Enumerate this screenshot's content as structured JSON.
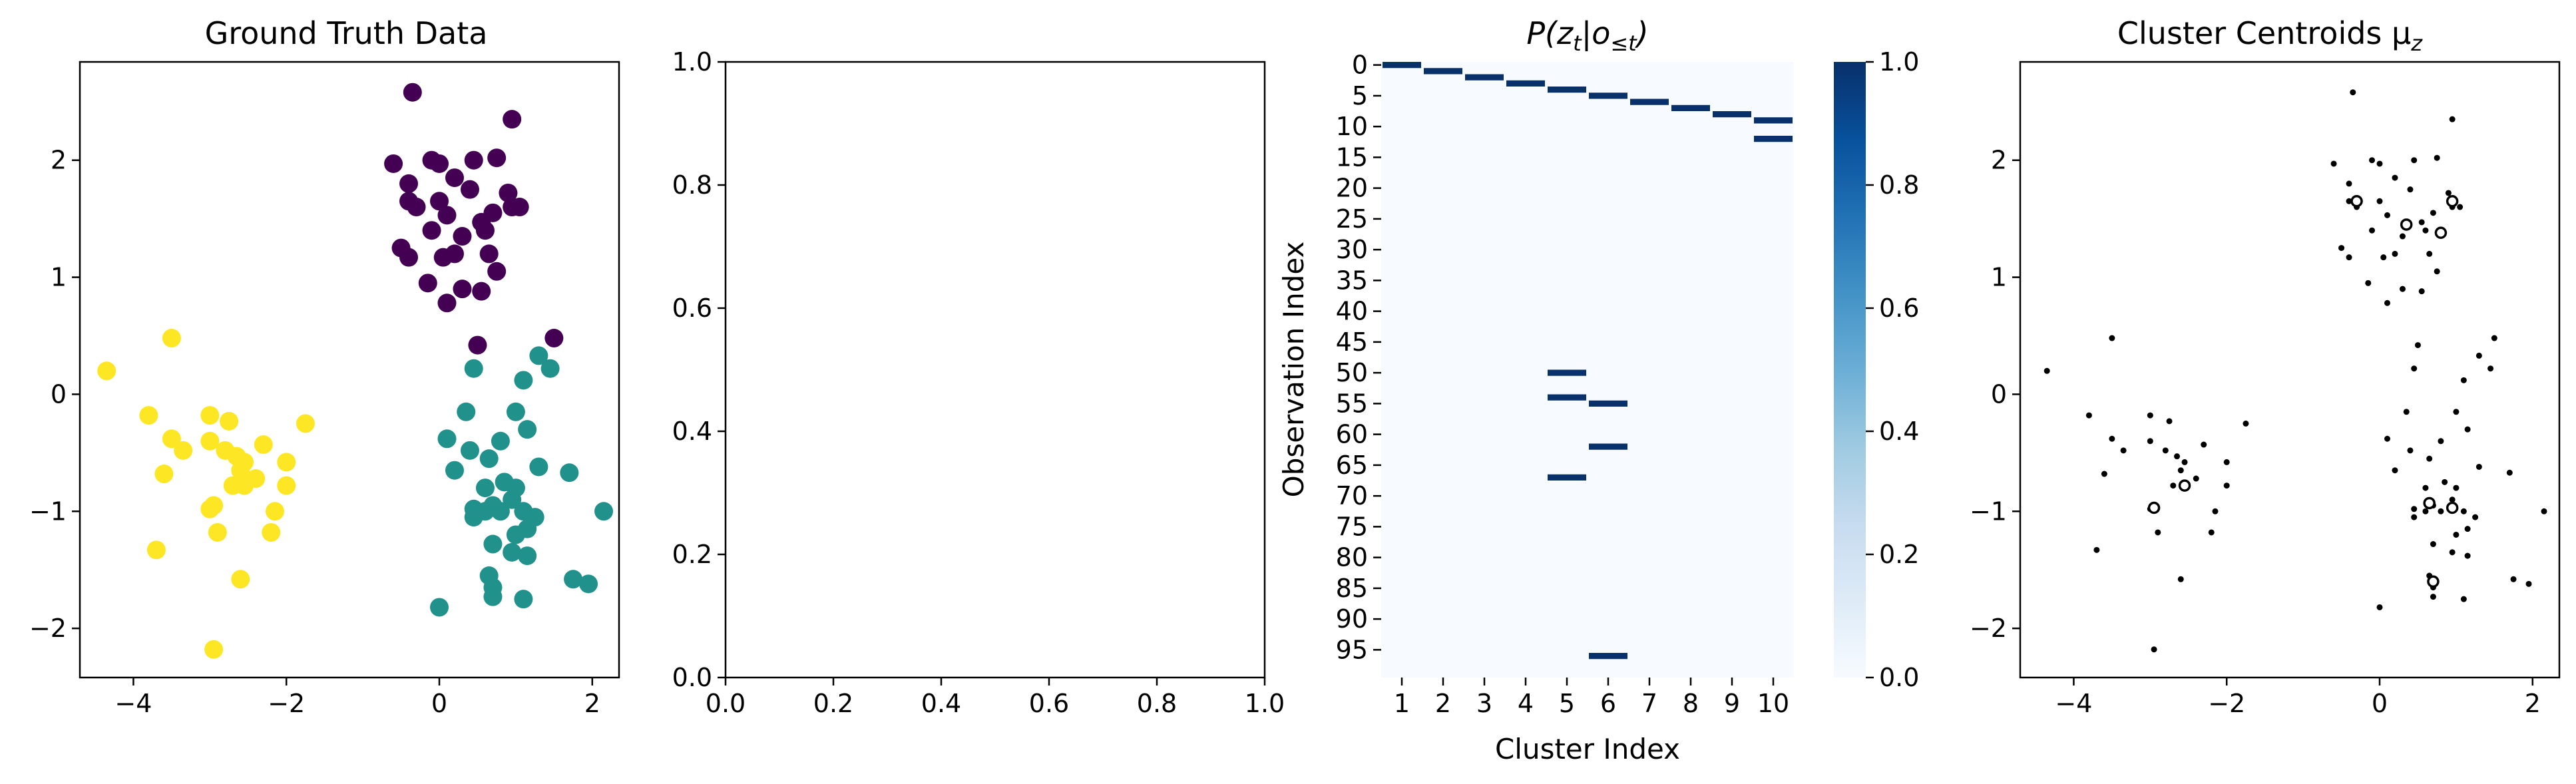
{
  "colors": {
    "cluster_0": "#440154",
    "cluster_1": "#21918c",
    "cluster_2": "#fde725",
    "heat_high": "#08306b",
    "heat_low": "#f7fbff",
    "centroid_marker": "#000000"
  },
  "chart_data": [
    {
      "type": "scatter",
      "title": "Ground Truth Data",
      "xlabel": "",
      "ylabel": "",
      "xlim": [
        -4.7,
        2.35
      ],
      "ylim": [
        -2.42,
        2.84
      ],
      "xticks": [
        -4,
        -2,
        0,
        2
      ],
      "yticks": [
        -2,
        -1,
        0,
        1,
        2
      ],
      "xtick_labels": [
        "−4",
        "−2",
        "0",
        "2"
      ],
      "ytick_labels": [
        "−2",
        "−1",
        "0",
        "1",
        "2"
      ],
      "grid": false,
      "series": [
        {
          "color_key": "cluster_0",
          "points": [
            [
              -0.35,
              2.58
            ],
            [
              0.95,
              2.35
            ],
            [
              -0.6,
              1.97
            ],
            [
              -0.1,
              2.0
            ],
            [
              0.0,
              1.97
            ],
            [
              0.45,
              2.0
            ],
            [
              0.75,
              2.02
            ],
            [
              -0.4,
              1.8
            ],
            [
              0.2,
              1.85
            ],
            [
              0.4,
              1.75
            ],
            [
              0.9,
              1.72
            ],
            [
              -0.4,
              1.65
            ],
            [
              -0.3,
              1.6
            ],
            [
              0.0,
              1.65
            ],
            [
              0.7,
              1.55
            ],
            [
              0.95,
              1.6
            ],
            [
              1.05,
              1.6
            ],
            [
              0.1,
              1.53
            ],
            [
              0.55,
              1.47
            ],
            [
              0.6,
              1.4
            ],
            [
              -0.1,
              1.4
            ],
            [
              0.3,
              1.35
            ],
            [
              -0.5,
              1.25
            ],
            [
              -0.4,
              1.17
            ],
            [
              0.05,
              1.17
            ],
            [
              0.2,
              1.2
            ],
            [
              0.65,
              1.2
            ],
            [
              0.75,
              1.05
            ],
            [
              0.3,
              0.9
            ],
            [
              0.55,
              0.88
            ],
            [
              -0.15,
              0.95
            ],
            [
              0.1,
              0.78
            ],
            [
              0.5,
              0.42
            ],
            [
              1.5,
              0.48
            ]
          ]
        },
        {
          "color_key": "cluster_1",
          "points": [
            [
              1.3,
              0.33
            ],
            [
              1.45,
              0.22
            ],
            [
              0.45,
              0.22
            ],
            [
              1.1,
              0.12
            ],
            [
              0.35,
              -0.15
            ],
            [
              1.0,
              -0.15
            ],
            [
              0.1,
              -0.38
            ],
            [
              1.15,
              -0.3
            ],
            [
              0.4,
              -0.48
            ],
            [
              0.8,
              -0.4
            ],
            [
              0.65,
              -0.55
            ],
            [
              1.3,
              -0.62
            ],
            [
              1.7,
              -0.67
            ],
            [
              0.2,
              -0.65
            ],
            [
              0.6,
              -0.8
            ],
            [
              0.85,
              -0.75
            ],
            [
              1.0,
              -0.8
            ],
            [
              0.95,
              -0.9
            ],
            [
              0.7,
              -0.95
            ],
            [
              0.8,
              -1.0
            ],
            [
              0.45,
              -0.98
            ],
            [
              0.6,
              -1.0
            ],
            [
              1.1,
              -1.0
            ],
            [
              0.45,
              -1.05
            ],
            [
              1.25,
              -1.05
            ],
            [
              2.15,
              -1.0
            ],
            [
              1.15,
              -1.15
            ],
            [
              1.0,
              -1.2
            ],
            [
              0.7,
              -1.28
            ],
            [
              0.95,
              -1.35
            ],
            [
              1.15,
              -1.38
            ],
            [
              0.65,
              -1.55
            ],
            [
              1.75,
              -1.58
            ],
            [
              0.7,
              -1.65
            ],
            [
              1.95,
              -1.62
            ],
            [
              0.7,
              -1.73
            ],
            [
              1.1,
              -1.75
            ],
            [
              0.0,
              -1.82
            ]
          ]
        },
        {
          "color_key": "cluster_2",
          "points": [
            [
              -3.5,
              0.48
            ],
            [
              -4.35,
              0.2
            ],
            [
              -3.8,
              -0.18
            ],
            [
              -3.0,
              -0.18
            ],
            [
              -2.75,
              -0.23
            ],
            [
              -1.75,
              -0.25
            ],
            [
              -3.5,
              -0.38
            ],
            [
              -3.0,
              -0.4
            ],
            [
              -2.3,
              -0.43
            ],
            [
              -3.35,
              -0.48
            ],
            [
              -2.8,
              -0.48
            ],
            [
              -2.65,
              -0.53
            ],
            [
              -2.55,
              -0.58
            ],
            [
              -2.0,
              -0.58
            ],
            [
              -2.6,
              -0.65
            ],
            [
              -3.6,
              -0.68
            ],
            [
              -2.4,
              -0.72
            ],
            [
              -2.7,
              -0.78
            ],
            [
              -2.55,
              -0.78
            ],
            [
              -2.0,
              -0.78
            ],
            [
              -2.15,
              -1.0
            ],
            [
              -3.0,
              -0.98
            ],
            [
              -2.95,
              -0.95
            ],
            [
              -2.9,
              -1.18
            ],
            [
              -2.2,
              -1.18
            ],
            [
              -3.7,
              -1.33
            ],
            [
              -2.6,
              -1.58
            ],
            [
              -2.95,
              -2.18
            ]
          ]
        }
      ]
    },
    {
      "type": "scatter",
      "title": "",
      "xlabel": "",
      "ylabel": "",
      "xlim": [
        0.0,
        1.0
      ],
      "ylim": [
        0.0,
        1.0
      ],
      "xticks": [
        0,
        0.2,
        0.4,
        0.6,
        0.8,
        1.0
      ],
      "yticks": [
        0,
        0.2,
        0.4,
        0.6,
        0.8,
        1.0
      ],
      "xtick_labels": [
        "0.0",
        "0.2",
        "0.4",
        "0.6",
        "0.8",
        "1.0"
      ],
      "ytick_labels": [
        "0.0",
        "0.2",
        "0.4",
        "0.6",
        "0.8",
        "1.0"
      ],
      "grid": false,
      "series": []
    },
    {
      "type": "heatmap",
      "title_math": {
        "prefix": "P(z",
        "sub1": "t",
        "mid": "|o",
        "sub2": "≤t",
        "suffix": ")"
      },
      "xlabel": "Cluster Index",
      "ylabel": "Observation Index",
      "n_rows": 100,
      "n_cols": 10,
      "x_tick_labels": [
        "1",
        "2",
        "3",
        "4",
        "5",
        "6",
        "7",
        "8",
        "9",
        "10"
      ],
      "y_tick_labels": [
        "0",
        "5",
        "10",
        "15",
        "20",
        "25",
        "30",
        "35",
        "40",
        "45",
        "50",
        "55",
        "60",
        "65",
        "70",
        "75",
        "80",
        "85",
        "90",
        "95"
      ],
      "value_range": [
        0.0,
        1.0
      ],
      "colorbar_ticks": [
        "0.0",
        "0.2",
        "0.4",
        "0.6",
        "0.8",
        "1.0"
      ],
      "cells": [
        {
          "row": 0,
          "col": 1,
          "value": 1.0
        },
        {
          "row": 1,
          "col": 2,
          "value": 1.0
        },
        {
          "row": 2,
          "col": 3,
          "value": 1.0
        },
        {
          "row": 3,
          "col": 4,
          "value": 1.0
        },
        {
          "row": 4,
          "col": 5,
          "value": 1.0
        },
        {
          "row": 5,
          "col": 6,
          "value": 1.0
        },
        {
          "row": 6,
          "col": 7,
          "value": 1.0
        },
        {
          "row": 7,
          "col": 8,
          "value": 1.0
        },
        {
          "row": 8,
          "col": 9,
          "value": 1.0
        },
        {
          "row": 9,
          "col": 10,
          "value": 1.0
        },
        {
          "row": 12,
          "col": 10,
          "value": 1.0
        },
        {
          "row": 50,
          "col": 5,
          "value": 1.0
        },
        {
          "row": 54,
          "col": 5,
          "value": 1.0
        },
        {
          "row": 55,
          "col": 6,
          "value": 1.0
        },
        {
          "row": 62,
          "col": 6,
          "value": 1.0
        },
        {
          "row": 67,
          "col": 5,
          "value": 1.0
        },
        {
          "row": 96,
          "col": 6,
          "value": 1.0
        }
      ]
    },
    {
      "type": "scatter",
      "title_math": {
        "prefix": "Cluster Centroids μ",
        "sub": "z"
      },
      "xlabel": "",
      "ylabel": "",
      "xlim": [
        -4.7,
        2.35
      ],
      "ylim": [
        -2.42,
        2.84
      ],
      "xticks": [
        -4,
        -2,
        0,
        2
      ],
      "yticks": [
        -2,
        -1,
        0,
        1,
        2
      ],
      "xtick_labels": [
        "−4",
        "−2",
        "0",
        "2"
      ],
      "ytick_labels": [
        "−2",
        "−1",
        "0",
        "1",
        "2"
      ],
      "grid": false,
      "marker": "small open black circles at observation locations",
      "open_markers": [
        [
          -0.3,
          1.65
        ],
        [
          0.35,
          1.45
        ],
        [
          0.8,
          1.38
        ],
        [
          0.95,
          1.65
        ],
        [
          -2.55,
          -0.78
        ],
        [
          -2.95,
          -0.97
        ],
        [
          0.65,
          -0.93
        ],
        [
          0.95,
          -0.97
        ],
        [
          0.7,
          -1.6
        ]
      ]
    }
  ]
}
